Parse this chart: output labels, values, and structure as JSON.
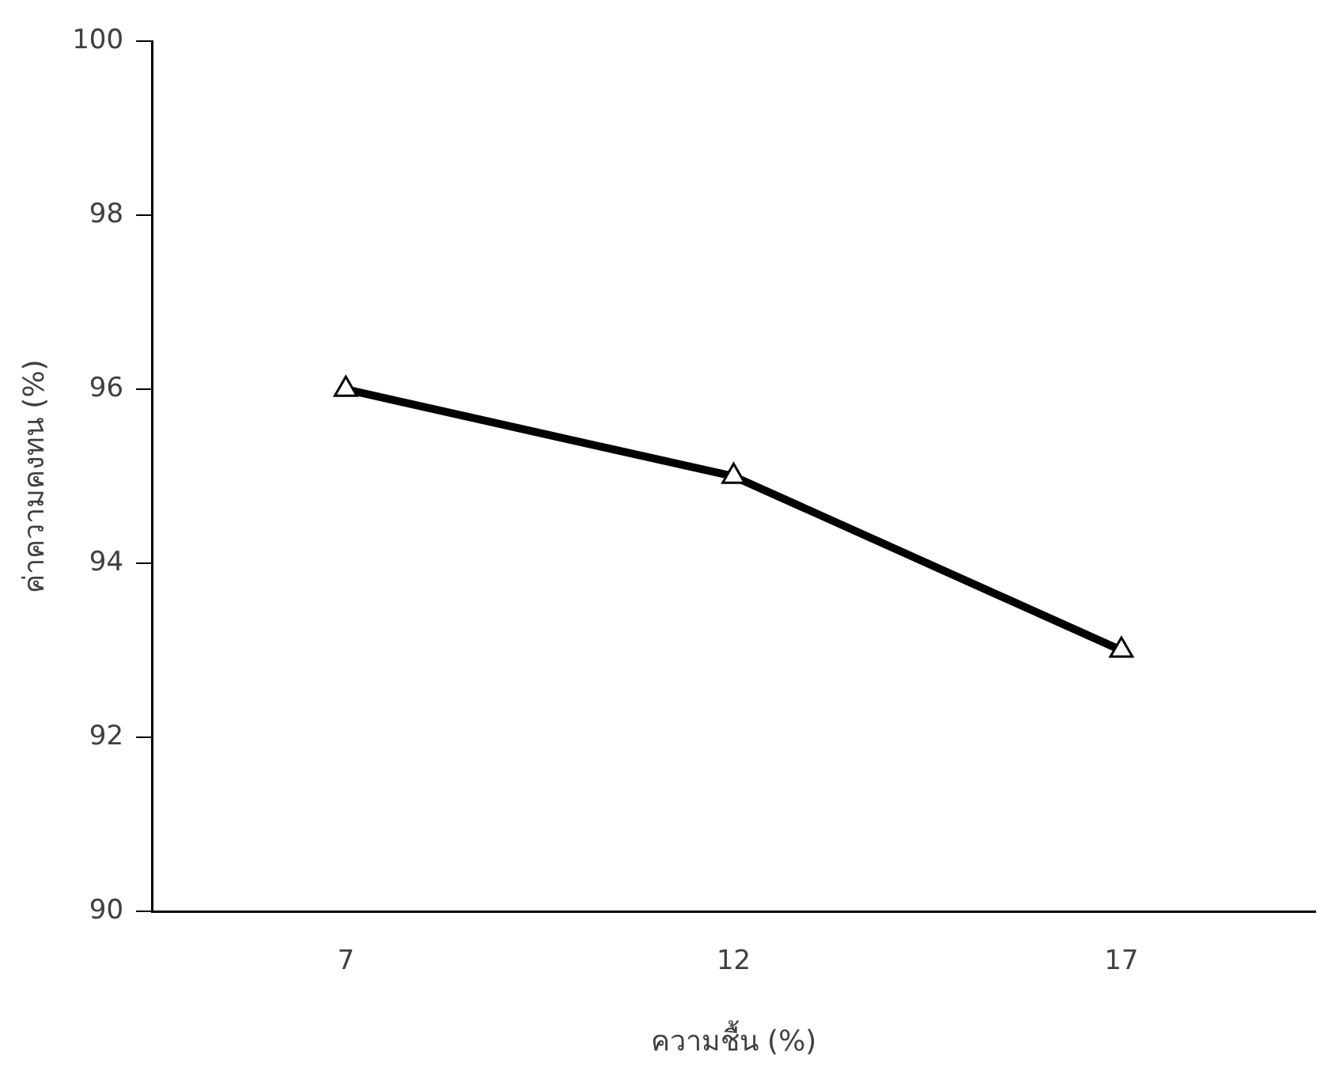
{
  "chart_data": {
    "type": "line",
    "xlabel": "ความชื้น (%)",
    "ylabel": "ค่าความคงทน (%)",
    "categories": [
      "7",
      "12",
      "17"
    ],
    "series": [
      {
        "color": "#000000",
        "values": [
          96,
          95,
          93
        ]
      }
    ],
    "ylim": [
      90,
      100
    ],
    "yticks": [
      90,
      92,
      94,
      96,
      98,
      100
    ],
    "grid": false,
    "legend": false,
    "marker": "triangle",
    "line_style": "solid"
  }
}
